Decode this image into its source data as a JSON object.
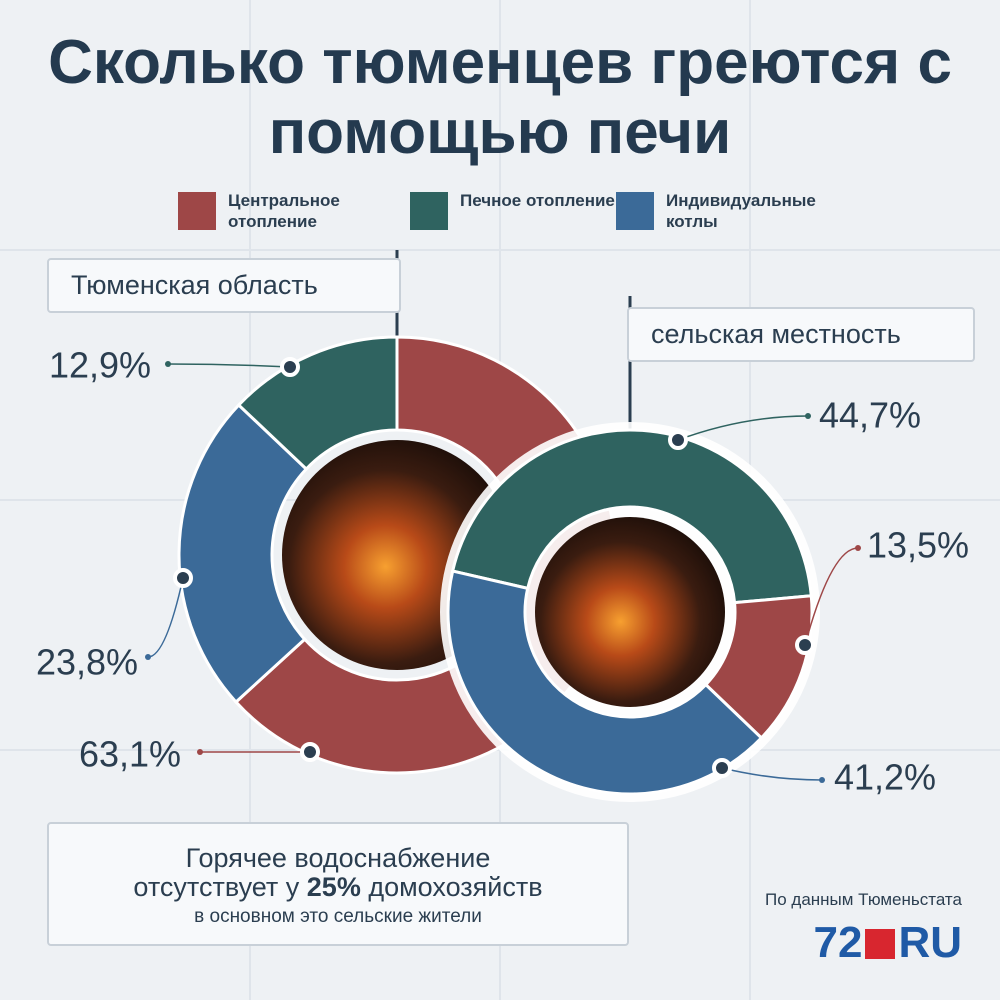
{
  "header": {
    "title": "Сколько тюменцев греются с помощью печи"
  },
  "chart_data": [
    {
      "type": "donut",
      "title": "Тюменская область",
      "categories": [
        "Центральное отопление",
        "Индивидуальные котлы",
        "Печное отопление"
      ],
      "values": [
        63.1,
        23.8,
        12.9
      ],
      "value_labels": [
        "63,1%",
        "23,8%",
        "12,9%"
      ],
      "colors": [
        "#9e4747",
        "#3b6a98",
        "#2f6360"
      ]
    },
    {
      "type": "donut",
      "title": "сельская местность",
      "categories": [
        "Печное отопление",
        "Центральное отопление",
        "Индивидуальные котлы"
      ],
      "values": [
        44.7,
        13.5,
        41.2
      ],
      "value_labels": [
        "44,7%",
        "13,5%",
        "41,2%"
      ],
      "colors": [
        "#2f6360",
        "#9e4747",
        "#3b6a98"
      ]
    }
  ],
  "note": {
    "line1": "Горячее водоснабжение",
    "line2a": "отсутствует у",
    "line2b": "25%",
    "line2c": "домохозяйств",
    "line3": "в основном это сельские жители"
  },
  "source": "По данным Тюменьстата",
  "logo": {
    "number": "72",
    "suffix": "RU"
  }
}
